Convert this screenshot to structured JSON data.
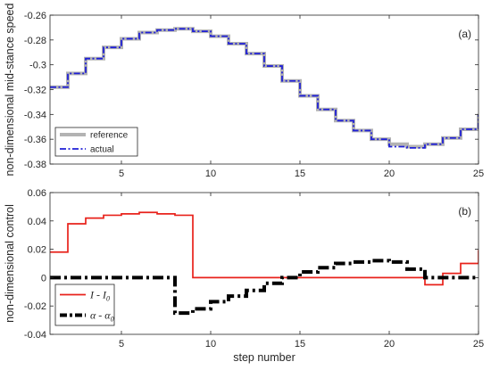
{
  "chart_data": [
    {
      "type": "line",
      "panel_label": "(a)",
      "ylabel": "non-dimensional mid-stance speed",
      "xlabel": "",
      "xlim": [
        1,
        25
      ],
      "ylim": [
        -0.38,
        -0.26
      ],
      "xticks": [
        5,
        10,
        15,
        20,
        25
      ],
      "yticks": [
        -0.38,
        -0.36,
        -0.34,
        -0.32,
        -0.3,
        -0.28,
        -0.26
      ],
      "ytick_labels": [
        "-0.38",
        "-0.36",
        "-0.34",
        "-0.32",
        "-0.3",
        "-0.28",
        "-0.26"
      ],
      "legend_position": "bottom-left",
      "series": [
        {
          "name": "reference",
          "style": "solid",
          "color": "#b3b3b3",
          "x": [
            1,
            2,
            3,
            4,
            5,
            6,
            7,
            8,
            9,
            10,
            11,
            12,
            13,
            14,
            15,
            16,
            17,
            18,
            19,
            20,
            21,
            22,
            23,
            24,
            25
          ],
          "values": [
            -0.318,
            -0.307,
            -0.295,
            -0.286,
            -0.279,
            -0.274,
            -0.272,
            -0.271,
            -0.273,
            -0.277,
            -0.283,
            -0.291,
            -0.301,
            -0.313,
            -0.325,
            -0.336,
            -0.345,
            -0.353,
            -0.36,
            -0.364,
            -0.366,
            -0.364,
            -0.359,
            -0.352,
            -0.341
          ]
        },
        {
          "name": "actual",
          "style": "dash-dot",
          "color": "#1f1fd6",
          "x": [
            1,
            2,
            3,
            4,
            5,
            6,
            7,
            8,
            9,
            10,
            11,
            12,
            13,
            14,
            15,
            16,
            17,
            18,
            19,
            20,
            21,
            22,
            23,
            24,
            25
          ],
          "values": [
            -0.318,
            -0.307,
            -0.295,
            -0.286,
            -0.279,
            -0.274,
            -0.272,
            -0.271,
            -0.273,
            -0.277,
            -0.283,
            -0.291,
            -0.301,
            -0.313,
            -0.325,
            -0.336,
            -0.345,
            -0.353,
            -0.36,
            -0.366,
            -0.367,
            -0.364,
            -0.359,
            -0.352,
            -0.341
          ]
        }
      ]
    },
    {
      "type": "line",
      "panel_label": "(b)",
      "ylabel": "non-dimensional control",
      "xlabel": "step number",
      "xlim": [
        1,
        25
      ],
      "ylim": [
        -0.04,
        0.06
      ],
      "xticks": [
        5,
        10,
        15,
        20,
        25
      ],
      "yticks": [
        -0.04,
        -0.02,
        0,
        0.02,
        0.04,
        0.06
      ],
      "ytick_labels": [
        "-0.04",
        "-0.02",
        "0",
        "0.02",
        "0.04",
        "0.06"
      ],
      "legend_position": "bottom-left",
      "series": [
        {
          "name": "I - I",
          "name_sub": "0",
          "style": "solid",
          "color": "#e8221b",
          "x": [
            1,
            2,
            3,
            4,
            5,
            6,
            7,
            8,
            9,
            10,
            11,
            12,
            13,
            14,
            15,
            16,
            17,
            18,
            19,
            20,
            21,
            22,
            23,
            24,
            25
          ],
          "values": [
            0.018,
            0.038,
            0.042,
            0.044,
            0.045,
            0.046,
            0.045,
            0.044,
            0,
            0,
            0,
            0,
            0,
            0,
            0,
            0,
            0,
            0,
            0,
            0,
            0,
            -0.005,
            0.003,
            0.01,
            0.019
          ]
        },
        {
          "name": "α - α",
          "name_sub": "0",
          "style": "dash-dot",
          "color": "#000000",
          "x": [
            1,
            2,
            3,
            4,
            5,
            6,
            7,
            8,
            9,
            10,
            11,
            12,
            13,
            14,
            15,
            16,
            17,
            18,
            19,
            20,
            21,
            22,
            23,
            24,
            25
          ],
          "values": [
            0,
            0,
            0,
            0,
            0,
            0,
            0,
            -0.025,
            -0.022,
            -0.017,
            -0.013,
            -0.009,
            -0.004,
            0,
            0.004,
            0.007,
            0.01,
            0.011,
            0.012,
            0.011,
            0.006,
            0,
            0,
            0,
            0
          ]
        }
      ]
    }
  ]
}
